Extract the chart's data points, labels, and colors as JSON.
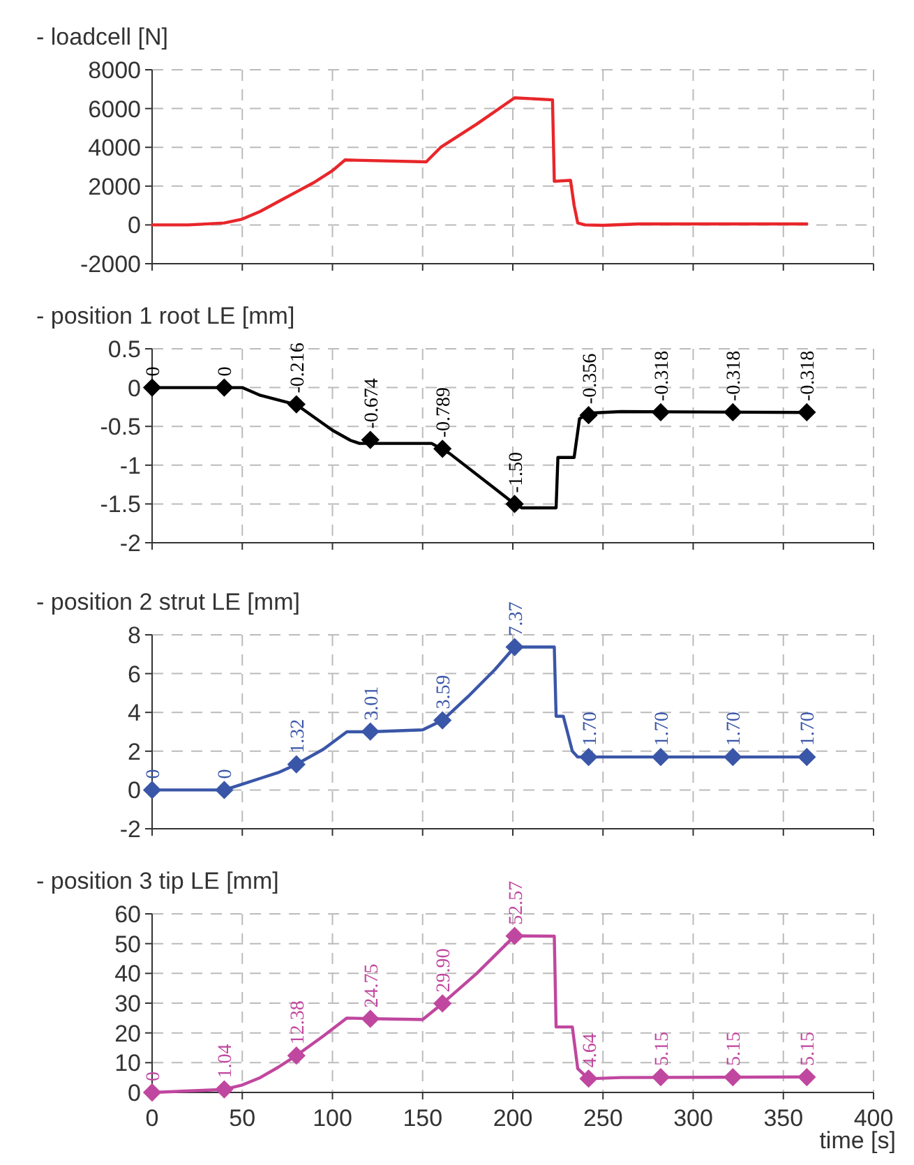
{
  "chart_data": [
    {
      "type": "line",
      "title": "- loadcell [N]",
      "xlim": [
        0,
        400
      ],
      "xticks": [
        0,
        50,
        100,
        150,
        200,
        250,
        300,
        350,
        400
      ],
      "ylim": [
        -2000,
        8000
      ],
      "yticks": [
        -2000,
        0,
        2000,
        4000,
        6000,
        8000
      ],
      "grid": true,
      "tick_labels": "y",
      "series": [
        {
          "color": "#e8262a",
          "marker": "none",
          "x": [
            0,
            20,
            40,
            50,
            60,
            70,
            80,
            90,
            100,
            107,
            152,
            160,
            180,
            201,
            222,
            223,
            232,
            234,
            236,
            240,
            250,
            270,
            300,
            363
          ],
          "values": [
            0,
            0,
            100,
            300,
            700,
            1200,
            1700,
            2200,
            2800,
            3350,
            3250,
            4000,
            5200,
            6550,
            6450,
            2250,
            2300,
            1000,
            100,
            0,
            -20,
            50,
            50,
            50
          ]
        }
      ]
    },
    {
      "type": "line",
      "title": "- position 1 root LE [mm]",
      "xlim": [
        0,
        400
      ],
      "xticks": [
        0,
        50,
        100,
        150,
        200,
        250,
        300,
        350,
        400
      ],
      "ylim": [
        -2,
        0.5
      ],
      "yticks": [
        -2,
        -1.5,
        -1,
        -0.5,
        0,
        0.5
      ],
      "grid": true,
      "tick_labels": "y",
      "series": [
        {
          "color": "#000000",
          "marker": "none",
          "x": [
            0,
            50,
            60,
            80,
            100,
            110,
            115,
            155,
            165,
            190,
            201,
            205,
            224,
            225,
            234,
            237,
            242,
            260,
            363
          ],
          "values": [
            0,
            0,
            -0.1,
            -0.22,
            -0.55,
            -0.68,
            -0.72,
            -0.72,
            -0.85,
            -1.3,
            -1.5,
            -1.55,
            -1.55,
            -0.9,
            -0.9,
            -0.4,
            -0.33,
            -0.31,
            -0.32
          ]
        },
        {
          "type": "scatter",
          "color": "#000000",
          "marker": "diamond",
          "x": [
            0,
            40,
            80,
            121,
            161,
            201,
            242,
            282,
            322,
            363
          ],
          "values": [
            0,
            0,
            -0.216,
            -0.674,
            -0.789,
            -1.5,
            -0.356,
            -0.318,
            -0.318,
            -0.318
          ],
          "value_labels": [
            "0",
            "0",
            "-0.216",
            "-0.674",
            "-0.789",
            "-1.50",
            "-0.356",
            "-0.318",
            "-0.318",
            "-0.318"
          ]
        }
      ]
    },
    {
      "type": "line",
      "title": "- position 2 strut LE [mm]",
      "xlim": [
        0,
        400
      ],
      "xticks": [
        0,
        50,
        100,
        150,
        200,
        250,
        300,
        350,
        400
      ],
      "ylim": [
        -2,
        8
      ],
      "yticks": [
        -2,
        0,
        2,
        4,
        6,
        8
      ],
      "grid": true,
      "tick_labels": "y",
      "series": [
        {
          "color": "#3a56a8",
          "marker": "none",
          "x": [
            0,
            40,
            50,
            60,
            70,
            80,
            95,
            108,
            121,
            150,
            161,
            175,
            190,
            201,
            223,
            224,
            228,
            233,
            236,
            242,
            363
          ],
          "values": [
            0,
            0,
            0.3,
            0.6,
            0.9,
            1.32,
            2.1,
            3,
            3,
            3.1,
            3.59,
            4.8,
            6.2,
            7.37,
            7.37,
            3.8,
            3.8,
            2,
            1.7,
            1.7,
            1.7
          ]
        },
        {
          "type": "scatter",
          "color": "#3a56a8",
          "marker": "diamond",
          "x": [
            0,
            40,
            80,
            121,
            161,
            201,
            242,
            282,
            322,
            363
          ],
          "values": [
            0,
            0,
            1.32,
            3.01,
            3.59,
            7.37,
            1.7,
            1.7,
            1.7,
            1.7
          ],
          "value_labels": [
            "0",
            "0",
            "1.32",
            "3.01",
            "3.59",
            "7.37",
            "1.70",
            "1.70",
            "1.70",
            "1.70"
          ]
        }
      ]
    },
    {
      "type": "line",
      "title": "- position 3 tip LE [mm]",
      "xlabel": "time [s]",
      "xlim": [
        0,
        400
      ],
      "xticks": [
        0,
        50,
        100,
        150,
        200,
        250,
        300,
        350,
        400
      ],
      "ylim": [
        0,
        60
      ],
      "yticks": [
        0,
        10,
        20,
        30,
        40,
        50,
        60
      ],
      "grid": true,
      "series": [
        {
          "color": "#c0479f",
          "marker": "none",
          "x": [
            0,
            40,
            50,
            60,
            70,
            80,
            95,
            108,
            121,
            150,
            161,
            180,
            201,
            223,
            224,
            233,
            236,
            242,
            260,
            363
          ],
          "values": [
            0,
            1,
            2.5,
            5,
            8.5,
            12.4,
            19,
            25,
            24.8,
            24.5,
            29.9,
            40,
            52.6,
            52.5,
            22,
            22,
            8,
            4.6,
            5,
            5.2
          ]
        },
        {
          "type": "scatter",
          "color": "#c0479f",
          "marker": "diamond",
          "x": [
            0,
            40,
            80,
            121,
            161,
            201,
            242,
            282,
            322,
            363
          ],
          "values": [
            0,
            1.04,
            12.38,
            24.75,
            29.9,
            52.57,
            4.64,
            5.15,
            5.15,
            5.15
          ],
          "value_labels": [
            "0",
            "1.04",
            "12.38",
            "24.75",
            "29.90",
            "52.57",
            "4.64",
            "5.15",
            "5.15",
            "5.15"
          ]
        }
      ]
    }
  ]
}
